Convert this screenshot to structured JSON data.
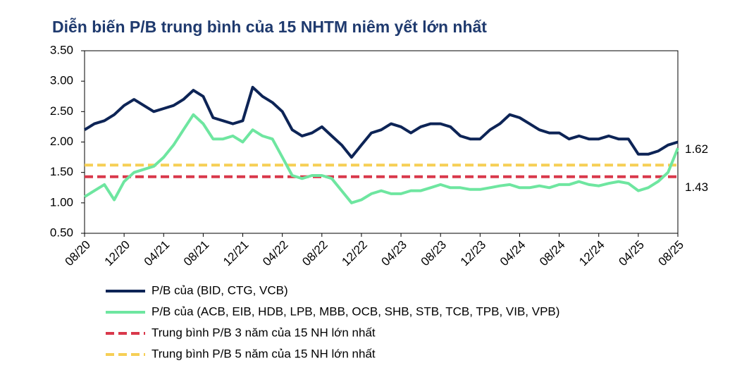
{
  "chart_data": {
    "type": "line",
    "title": "Diễn biến P/B trung bình của 15 NHTM niêm yết lớn nhất",
    "categories": [
      "08/20",
      null,
      null,
      null,
      "12/20",
      null,
      null,
      null,
      "04/21",
      null,
      null,
      null,
      "08/21",
      null,
      null,
      null,
      "12/21",
      null,
      null,
      null,
      "04/22",
      null,
      null,
      null,
      "08/22",
      null,
      null,
      null,
      "12/22",
      null,
      null,
      null,
      "04/23",
      null,
      null,
      null,
      "08/23",
      null,
      null,
      null,
      "12/23",
      null,
      null,
      null,
      "04/24",
      null,
      null,
      null,
      "08/24",
      null,
      null,
      null,
      "12/24",
      null,
      null,
      null,
      "04/25",
      null,
      null,
      null,
      "08/25"
    ],
    "series": [
      {
        "name": "P/B của (BID, CTG, VCB)",
        "color": "#0d2456",
        "values": [
          2.2,
          2.3,
          2.35,
          2.45,
          2.6,
          2.7,
          2.6,
          2.5,
          2.55,
          2.6,
          2.7,
          2.85,
          2.75,
          2.4,
          2.35,
          2.3,
          2.35,
          2.9,
          2.75,
          2.65,
          2.5,
          2.2,
          2.1,
          2.15,
          2.25,
          2.1,
          1.95,
          1.75,
          1.95,
          2.15,
          2.2,
          2.3,
          2.25,
          2.15,
          2.25,
          2.3,
          2.3,
          2.25,
          2.1,
          2.05,
          2.05,
          2.2,
          2.3,
          2.45,
          2.4,
          2.3,
          2.2,
          2.15,
          2.15,
          2.05,
          2.1,
          2.05,
          2.05,
          2.1,
          2.05,
          2.05,
          1.8,
          1.8,
          1.85,
          1.95,
          2.0
        ]
      },
      {
        "name": "P/B của (ACB, EIB, HDB,  LPB, MBB, OCB, SHB, STB, TCB, TPB, VIB, VPB)",
        "color": "#6ee6a0",
        "values": [
          1.1,
          1.2,
          1.3,
          1.05,
          1.35,
          1.5,
          1.55,
          1.6,
          1.75,
          1.95,
          2.2,
          2.45,
          2.3,
          2.05,
          2.05,
          2.1,
          2.0,
          2.2,
          2.1,
          2.05,
          1.75,
          1.45,
          1.4,
          1.45,
          1.45,
          1.4,
          1.2,
          1.0,
          1.05,
          1.15,
          1.2,
          1.15,
          1.15,
          1.2,
          1.2,
          1.25,
          1.3,
          1.25,
          1.25,
          1.22,
          1.22,
          1.25,
          1.28,
          1.3,
          1.25,
          1.25,
          1.28,
          1.25,
          1.3,
          1.3,
          1.35,
          1.3,
          1.28,
          1.32,
          1.35,
          1.32,
          1.2,
          1.25,
          1.35,
          1.5,
          1.9
        ]
      }
    ],
    "reference_lines": [
      {
        "name": "Trung bình P/B 3 năm của 15 NH lớn nhất",
        "color": "#d9384b",
        "value": 1.43
      },
      {
        "name": "Trung bình P/B 5 năm của 15 NH lớn nhất",
        "color": "#f6cf55",
        "value": 1.62
      }
    ],
    "ylim": [
      0.5,
      3.5
    ],
    "yticks": [
      {
        "value": 0.5,
        "label": "0.50"
      },
      {
        "value": 1.0,
        "label": "1.00"
      },
      {
        "value": 1.5,
        "label": "1.50"
      },
      {
        "value": 2.0,
        "label": "2.00"
      },
      {
        "value": 2.5,
        "label": "2.50"
      },
      {
        "value": 3.0,
        "label": "3.00"
      },
      {
        "value": 3.5,
        "label": "3.50"
      }
    ],
    "grid": false
  }
}
